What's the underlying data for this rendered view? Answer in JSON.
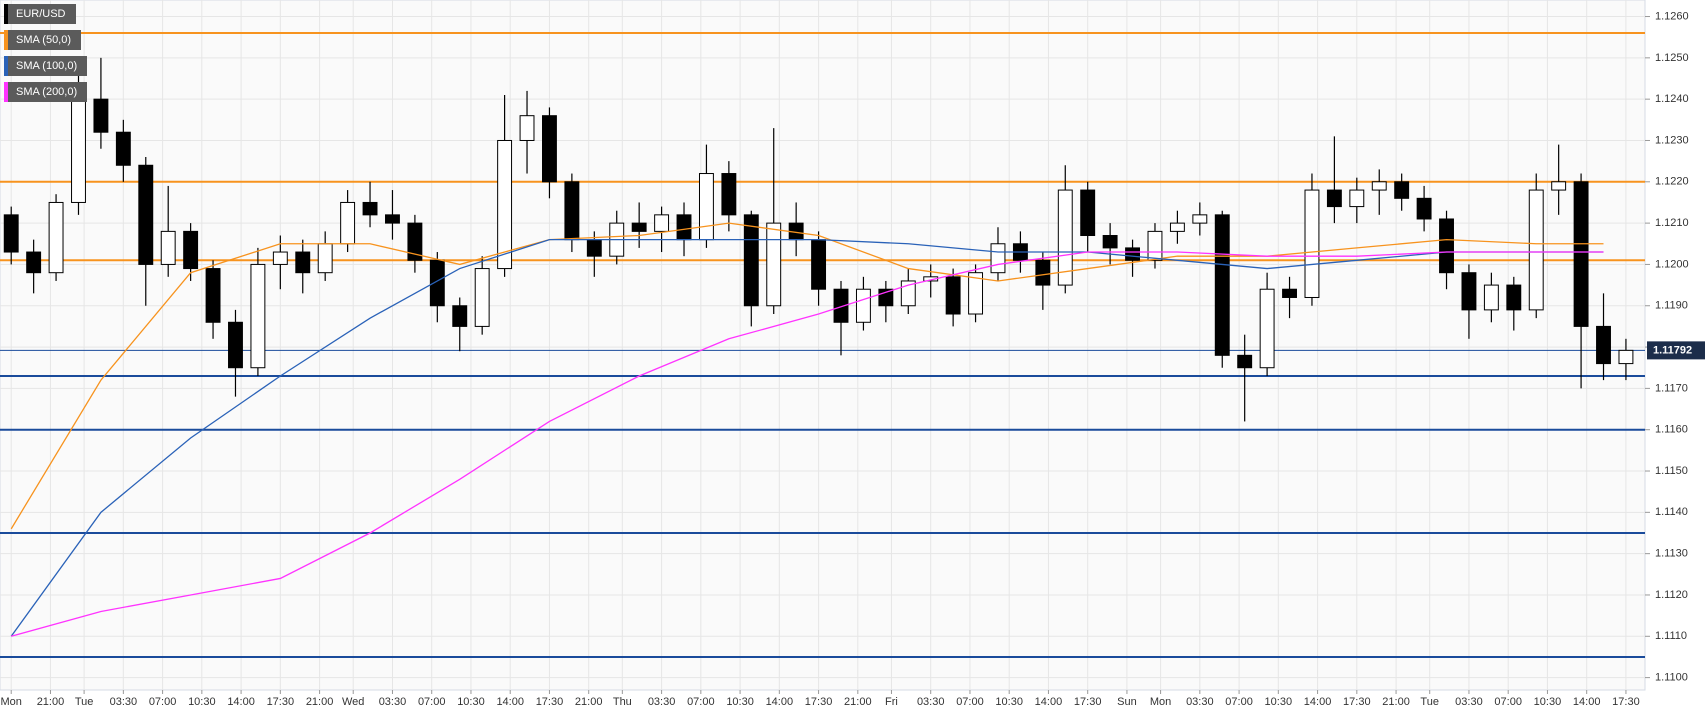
{
  "chart_data": {
    "type": "candlestick",
    "name": "EUR/USD",
    "up_color": "#ffffff",
    "down_color": "#000000",
    "x": [
      0,
      2,
      4,
      6,
      8,
      10,
      12,
      14,
      16,
      18,
      20,
      22,
      24,
      26,
      28,
      30,
      32,
      34,
      36,
      38,
      40,
      42,
      44,
      46,
      48,
      50,
      52,
      54,
      56,
      58,
      60,
      62,
      64,
      66,
      68,
      70,
      72,
      74,
      76,
      78,
      80,
      82,
      84,
      86,
      88,
      90,
      92,
      94,
      96,
      98,
      100,
      102,
      104,
      106,
      108,
      110,
      112,
      114,
      116,
      118,
      120,
      122,
      124,
      126,
      128,
      130,
      132,
      134,
      136,
      138,
      140,
      142,
      144
    ],
    "open": [
      1.1212,
      1.1203,
      1.1198,
      1.1215,
      1.124,
      1.1232,
      1.1224,
      1.12,
      1.1208,
      1.1199,
      1.1186,
      1.1175,
      1.12,
      1.1203,
      1.1198,
      1.1205,
      1.1215,
      1.1212,
      1.121,
      1.1201,
      1.119,
      1.1185,
      1.1199,
      1.123,
      1.1236,
      1.122,
      1.1206,
      1.1202,
      1.121,
      1.1208,
      1.1212,
      1.1206,
      1.1222,
      1.1212,
      1.119,
      1.121,
      1.1206,
      1.1194,
      1.1186,
      1.1194,
      1.119,
      1.1196,
      1.1197,
      1.1188,
      1.1198,
      1.1205,
      1.1201,
      1.1195,
      1.1218,
      1.1207,
      1.1204,
      1.1201,
      1.1208,
      1.121,
      1.1212,
      1.1178,
      1.1175,
      1.1194,
      1.1192,
      1.1218,
      1.1214,
      1.1218,
      1.122,
      1.1216,
      1.1211,
      1.1198,
      1.1189,
      1.1195,
      1.1189,
      1.1218,
      1.122,
      1.1185,
      1.1176
    ],
    "high": [
      1.1214,
      1.1206,
      1.1217,
      1.1246,
      1.125,
      1.1235,
      1.1226,
      1.1219,
      1.121,
      1.1201,
      1.1189,
      1.1204,
      1.1207,
      1.1206,
      1.1208,
      1.1218,
      1.122,
      1.1218,
      1.1212,
      1.1203,
      1.1192,
      1.1202,
      1.1241,
      1.1242,
      1.1238,
      1.1222,
      1.1208,
      1.1213,
      1.1215,
      1.1214,
      1.1215,
      1.1229,
      1.1225,
      1.1213,
      1.1233,
      1.1215,
      1.1208,
      1.1196,
      1.1197,
      1.1196,
      1.1199,
      1.12,
      1.1199,
      1.12,
      1.1209,
      1.1208,
      1.1203,
      1.1224,
      1.122,
      1.121,
      1.1206,
      1.121,
      1.1213,
      1.1215,
      1.1213,
      1.1183,
      1.1198,
      1.1197,
      1.1222,
      1.1231,
      1.1221,
      1.1223,
      1.1222,
      1.1219,
      1.1213,
      1.12,
      1.1198,
      1.1197,
      1.1222,
      1.1229,
      1.1222,
      1.1193,
      1.1182
    ],
    "low": [
      1.12,
      1.1193,
      1.1196,
      1.1212,
      1.1228,
      1.122,
      1.119,
      1.1197,
      1.1196,
      1.1182,
      1.1168,
      1.1173,
      1.1194,
      1.1193,
      1.1196,
      1.1203,
      1.1209,
      1.1206,
      1.1198,
      1.1186,
      1.1179,
      1.1183,
      1.1197,
      1.1222,
      1.1216,
      1.1203,
      1.1197,
      1.12,
      1.1204,
      1.1203,
      1.1202,
      1.1204,
      1.1208,
      1.1185,
      1.1188,
      1.1202,
      1.119,
      1.1178,
      1.1184,
      1.1186,
      1.1188,
      1.1192,
      1.1185,
      1.1186,
      1.1196,
      1.1198,
      1.1189,
      1.1193,
      1.1203,
      1.12,
      1.1197,
      1.1199,
      1.1205,
      1.1207,
      1.1175,
      1.1162,
      1.1173,
      1.1187,
      1.119,
      1.121,
      1.121,
      1.1212,
      1.1213,
      1.1208,
      1.1194,
      1.1182,
      1.1186,
      1.1184,
      1.1187,
      1.1212,
      1.117,
      1.1172,
      1.1172
    ],
    "close": [
      1.1203,
      1.1198,
      1.1215,
      1.124,
      1.1232,
      1.1224,
      1.12,
      1.1208,
      1.1199,
      1.1186,
      1.1175,
      1.12,
      1.1203,
      1.1198,
      1.1205,
      1.1215,
      1.1212,
      1.121,
      1.1201,
      1.119,
      1.1185,
      1.1199,
      1.123,
      1.1236,
      1.122,
      1.1206,
      1.1202,
      1.121,
      1.1208,
      1.1212,
      1.1206,
      1.1222,
      1.1212,
      1.119,
      1.121,
      1.1206,
      1.1194,
      1.1186,
      1.1194,
      1.119,
      1.1196,
      1.1197,
      1.1188,
      1.1198,
      1.1205,
      1.1201,
      1.1195,
      1.1218,
      1.1207,
      1.1204,
      1.1201,
      1.1208,
      1.121,
      1.1212,
      1.1178,
      1.1175,
      1.1194,
      1.1192,
      1.1218,
      1.1214,
      1.1218,
      1.122,
      1.1216,
      1.1211,
      1.1198,
      1.1189,
      1.1195,
      1.1189,
      1.1218,
      1.122,
      1.1185,
      1.1176,
      1.11792
    ],
    "sma_x": [
      0,
      8,
      16,
      24,
      32,
      40,
      48,
      56,
      64,
      72,
      80,
      88,
      96,
      104,
      112,
      120,
      128,
      136,
      142
    ],
    "sma": [
      {
        "name": "SMA (50,0)",
        "color": "#f7931e",
        "values": [
          1.1136,
          1.1172,
          1.1198,
          1.1205,
          1.1205,
          1.12,
          1.1206,
          1.1207,
          1.121,
          1.1207,
          1.1199,
          1.1196,
          1.1199,
          1.1202,
          1.1202,
          1.1204,
          1.1206,
          1.1205,
          1.1205
        ]
      },
      {
        "name": "SMA (100,0)",
        "color": "#2a62b8",
        "values": [
          1.111,
          1.114,
          1.1158,
          1.1173,
          1.1187,
          1.1199,
          1.1206,
          1.1206,
          1.1206,
          1.1206,
          1.1205,
          1.1203,
          1.1203,
          1.1201,
          1.1199,
          1.1201,
          1.1203,
          1.1203,
          1.1203
        ]
      },
      {
        "name": "SMA (200,0)",
        "color": "#ff33ff",
        "values": [
          1.111,
          1.1116,
          1.112,
          1.1124,
          1.1135,
          1.1148,
          1.1162,
          1.1173,
          1.1182,
          1.1188,
          1.1195,
          1.12,
          1.1203,
          1.1203,
          1.1202,
          1.1202,
          1.1203,
          1.1203,
          1.1203
        ]
      }
    ],
    "levels": [
      {
        "value": 1.1256,
        "color": "#f7931e"
      },
      {
        "value": 1.122,
        "color": "#f7931e"
      },
      {
        "value": 1.1201,
        "color": "#f7931e"
      },
      {
        "value": 1.1173,
        "color": "#1a4b9b"
      },
      {
        "value": 1.116,
        "color": "#1a4b9b"
      },
      {
        "value": 1.1135,
        "color": "#1a4b9b"
      },
      {
        "value": 1.1105,
        "color": "#1a4b9b"
      }
    ],
    "last_price": 1.11792,
    "last_price_color": "#1a4b9b",
    "xlim": [
      -1,
      145.7
    ],
    "ylim": [
      1.1097,
      1.1264
    ],
    "grid": true,
    "yticks": [
      {
        "value": 1.11,
        "label": "1.1100"
      },
      {
        "value": 1.111,
        "label": "1.1110"
      },
      {
        "value": 1.112,
        "label": "1.1120"
      },
      {
        "value": 1.113,
        "label": "1.1130"
      },
      {
        "value": 1.114,
        "label": "1.1140"
      },
      {
        "value": 1.115,
        "label": "1.1150"
      },
      {
        "value": 1.116,
        "label": "1.1160"
      },
      {
        "value": 1.117,
        "label": "1.1170"
      },
      {
        "value": 1.118,
        "label": "1.1180"
      },
      {
        "value": 1.119,
        "label": "1.1190"
      },
      {
        "value": 1.12,
        "label": "1.1200"
      },
      {
        "value": 1.121,
        "label": "1.1210"
      },
      {
        "value": 1.122,
        "label": "1.1220"
      },
      {
        "value": 1.123,
        "label": "1.1230"
      },
      {
        "value": 1.124,
        "label": "1.1240"
      },
      {
        "value": 1.125,
        "label": "1.1250"
      },
      {
        "value": 1.126,
        "label": "1.1260"
      }
    ],
    "xticks": [
      {
        "value": 0,
        "label": "Mon"
      },
      {
        "value": 3.5,
        "label": "21:00"
      },
      {
        "value": 6.5,
        "label": "Tue"
      },
      {
        "value": 10,
        "label": "03:30"
      },
      {
        "value": 13.5,
        "label": "07:00"
      },
      {
        "value": 17,
        "label": "10:30"
      },
      {
        "value": 20.5,
        "label": "14:00"
      },
      {
        "value": 24,
        "label": "17:30"
      },
      {
        "value": 27.5,
        "label": "21:00"
      },
      {
        "value": 30.5,
        "label": "Wed"
      },
      {
        "value": 34,
        "label": "03:30"
      },
      {
        "value": 37.5,
        "label": "07:00"
      },
      {
        "value": 41,
        "label": "10:30"
      },
      {
        "value": 44.5,
        "label": "14:00"
      },
      {
        "value": 48,
        "label": "17:30"
      },
      {
        "value": 51.5,
        "label": "21:00"
      },
      {
        "value": 54.5,
        "label": "Thu"
      },
      {
        "value": 58,
        "label": "03:30"
      },
      {
        "value": 61.5,
        "label": "07:00"
      },
      {
        "value": 65,
        "label": "10:30"
      },
      {
        "value": 68.5,
        "label": "14:00"
      },
      {
        "value": 72,
        "label": "17:30"
      },
      {
        "value": 75.5,
        "label": "21:00"
      },
      {
        "value": 78.5,
        "label": "Fri"
      },
      {
        "value": 82,
        "label": "03:30"
      },
      {
        "value": 85.5,
        "label": "07:00"
      },
      {
        "value": 89,
        "label": "10:30"
      },
      {
        "value": 92.5,
        "label": "14:00"
      },
      {
        "value": 96,
        "label": "17:30"
      },
      {
        "value": 99.5,
        "label": "Sun"
      },
      {
        "value": 102.5,
        "label": "Mon"
      },
      {
        "value": 106,
        "label": "03:30"
      },
      {
        "value": 109.5,
        "label": "07:00"
      },
      {
        "value": 113,
        "label": "10:30"
      },
      {
        "value": 116.5,
        "label": "14:00"
      },
      {
        "value": 120,
        "label": "17:30"
      },
      {
        "value": 123.5,
        "label": "21:00"
      },
      {
        "value": 126.5,
        "label": "Tue"
      },
      {
        "value": 130,
        "label": "03:30"
      },
      {
        "value": 133.5,
        "label": "07:00"
      },
      {
        "value": 137,
        "label": "10:30"
      },
      {
        "value": 140.5,
        "label": "14:00"
      },
      {
        "value": 144,
        "label": "17:30"
      }
    ]
  }
}
